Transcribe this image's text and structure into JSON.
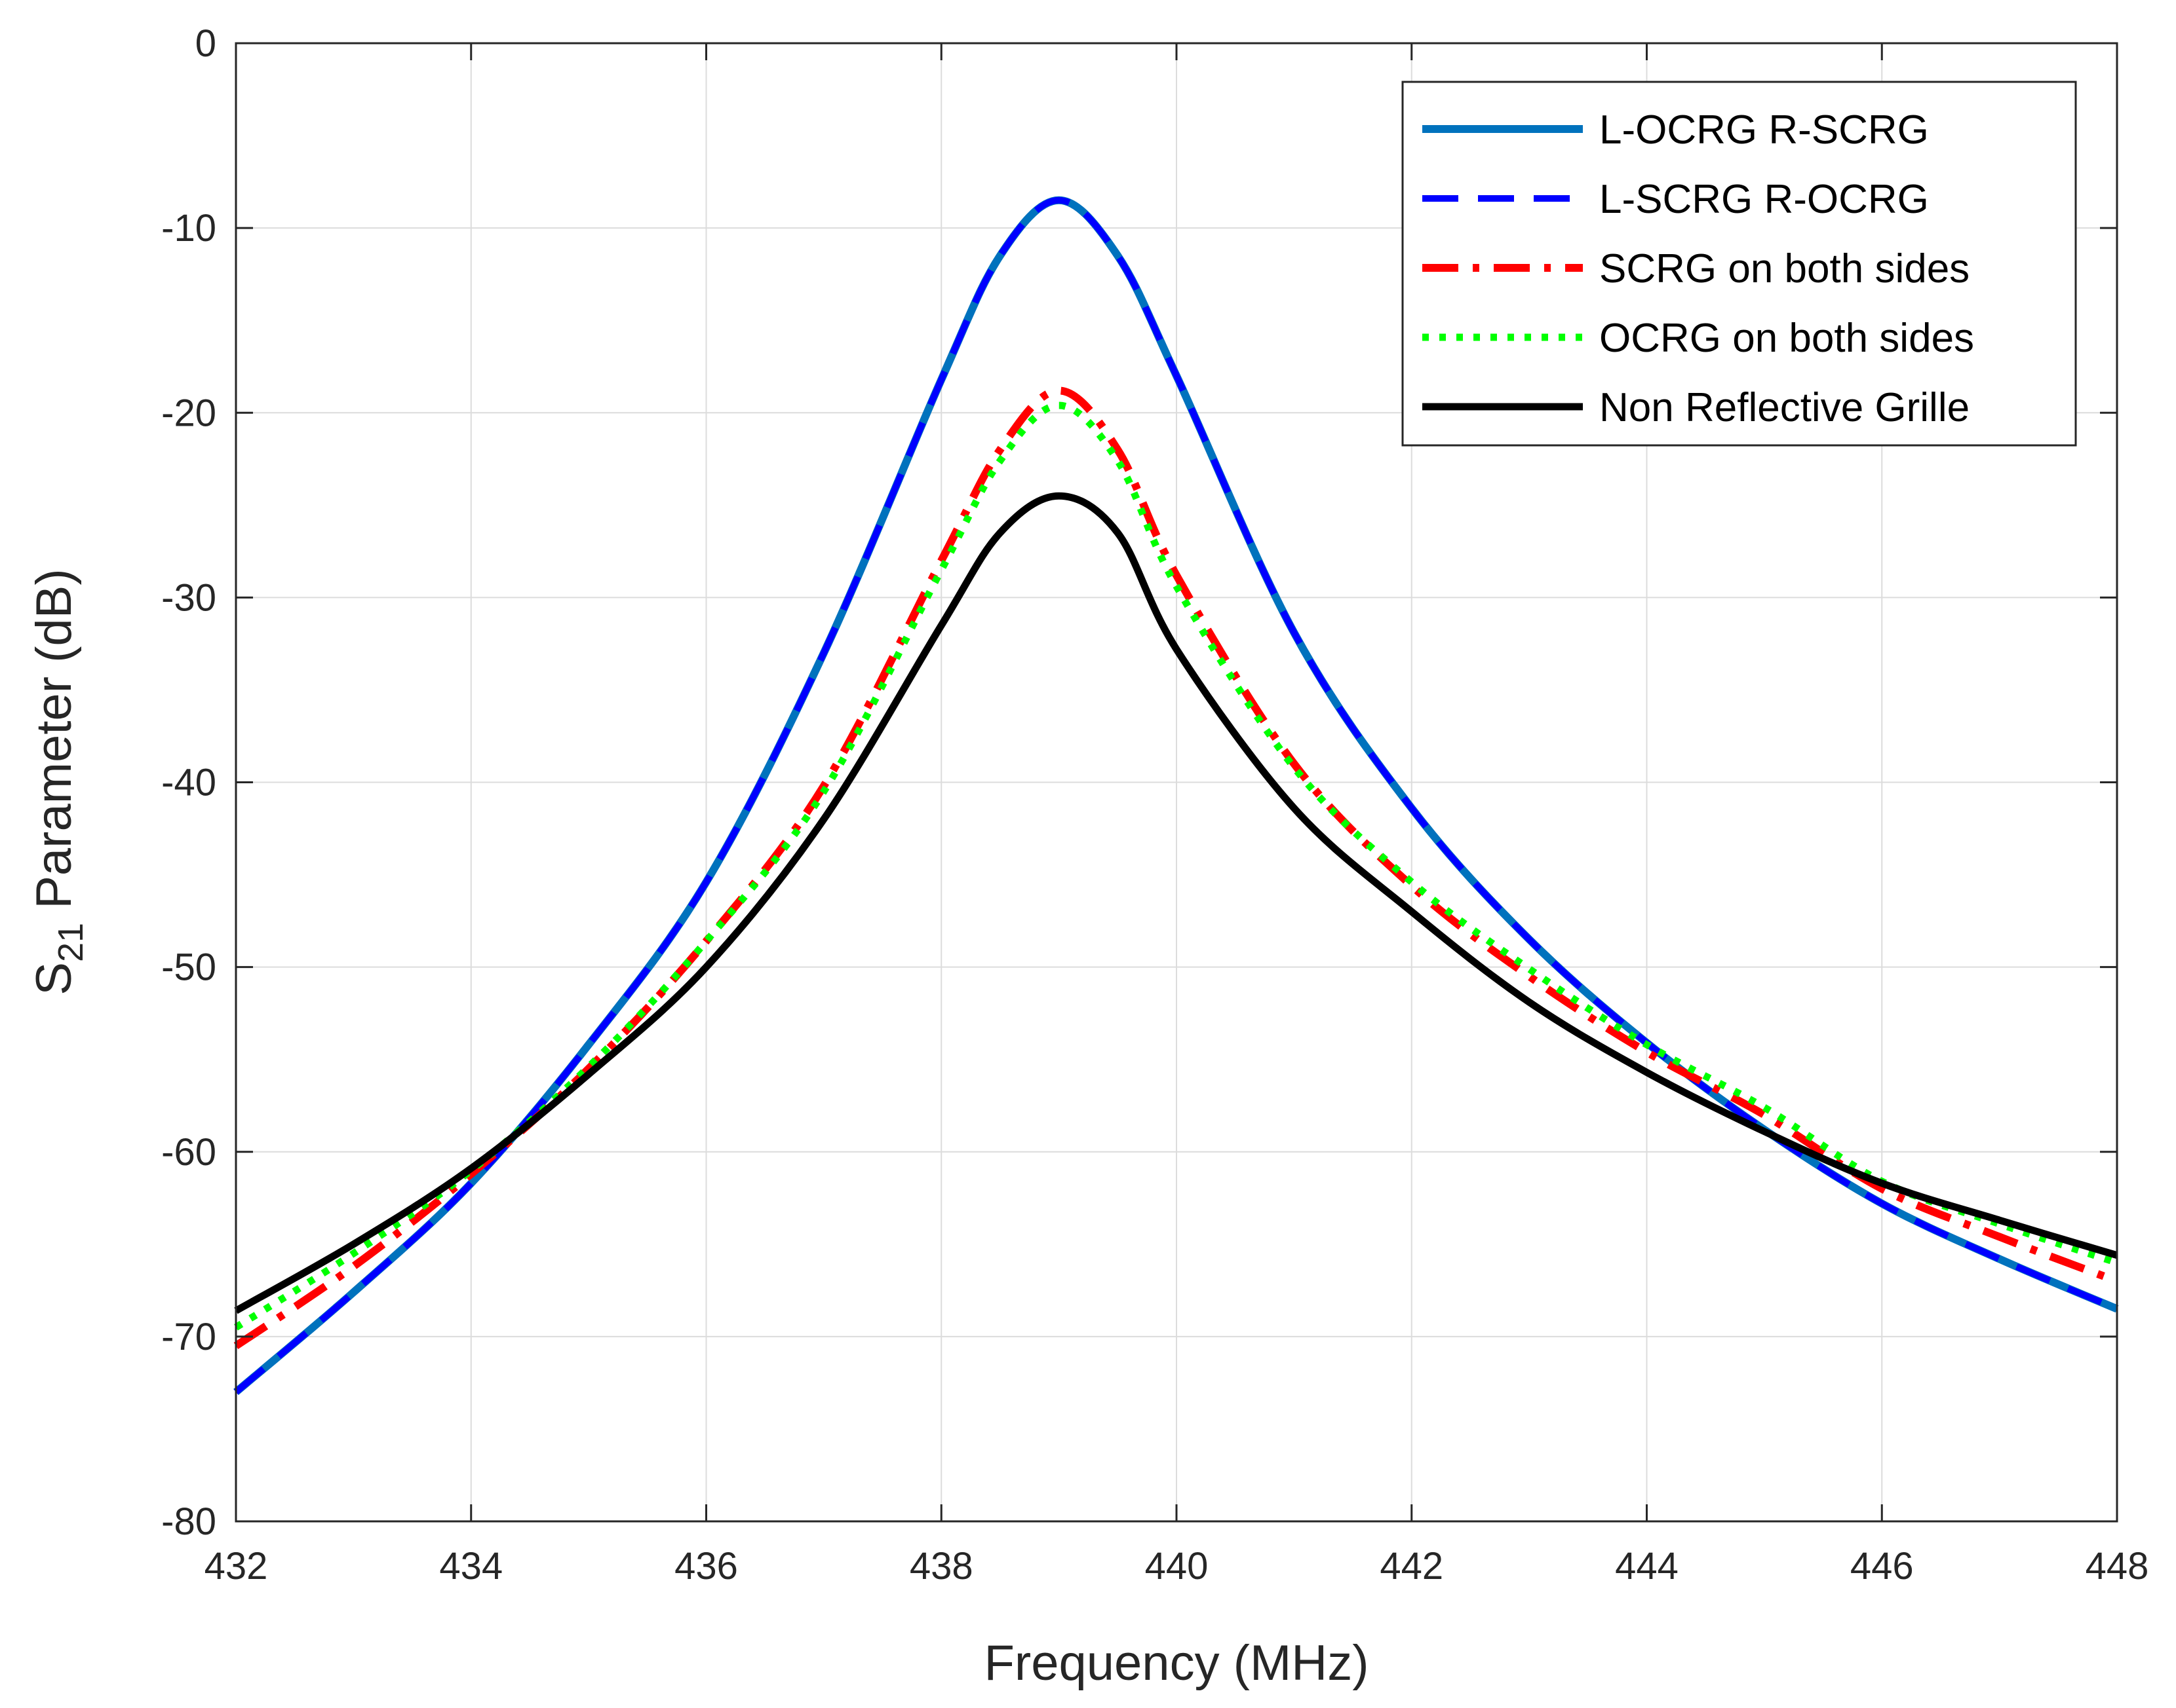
{
  "chart_data": {
    "type": "line",
    "xlabel": "Frequency (MHz)",
    "ylabel_prefix": "S",
    "ylabel_subscript": "21",
    "ylabel_suffix": " Parameter (dB)",
    "xlim": [
      432,
      448
    ],
    "ylim": [
      -80,
      0
    ],
    "xticks": [
      432,
      434,
      436,
      438,
      440,
      442,
      444,
      446,
      448
    ],
    "yticks": [
      0,
      -10,
      -20,
      -30,
      -40,
      -50,
      -60,
      -70,
      -80
    ],
    "grid": true,
    "legend_position": "top-right",
    "x": [
      432,
      433,
      434,
      435,
      436,
      437,
      438,
      438.5,
      439,
      439.5,
      440,
      441,
      442,
      443,
      444,
      445,
      446,
      447,
      448
    ],
    "series": [
      {
        "name": "L-OCRG R-SCRG",
        "color": "#0072BD",
        "style": "solid",
        "values": [
          -73.0,
          -67.6,
          -61.7,
          -54.2,
          -45.4,
          -33.0,
          -18.2,
          -11.5,
          -8.5,
          -11.5,
          -18.0,
          -31.9,
          -41.4,
          -48.5,
          -54.1,
          -58.8,
          -62.8,
          -65.8,
          -68.5
        ]
      },
      {
        "name": "L-SCRG R-OCRG",
        "color": "#0000FF",
        "style": "dashed",
        "values": [
          -73.0,
          -67.6,
          -61.7,
          -54.2,
          -45.4,
          -33.0,
          -18.2,
          -11.5,
          -8.5,
          -11.5,
          -18.0,
          -31.9,
          -41.4,
          -48.5,
          -54.1,
          -58.8,
          -62.8,
          -65.8,
          -68.5
        ]
      },
      {
        "name": "SCRG on both sides",
        "color": "#FF0000",
        "style": "dashdot",
        "values": [
          -70.5,
          -66.2,
          -61.2,
          -55.5,
          -48.6,
          -40.2,
          -28.0,
          -22.0,
          -18.8,
          -22.0,
          -28.8,
          -39.0,
          -45.6,
          -50.5,
          -54.6,
          -58.0,
          -62.0,
          -64.6,
          -67.0
        ]
      },
      {
        "name": "OCRG on both sides",
        "color": "#00FF00",
        "style": "dotted",
        "values": [
          -69.5,
          -65.5,
          -61.0,
          -55.4,
          -48.6,
          -40.5,
          -28.5,
          -22.6,
          -19.6,
          -22.6,
          -29.4,
          -39.2,
          -45.4,
          -50.1,
          -54.2,
          -57.6,
          -61.6,
          -63.9,
          -66.0
        ]
      },
      {
        "name": "Non Reflective Grille",
        "color": "#000000",
        "style": "solid",
        "values": [
          -68.6,
          -65.0,
          -60.9,
          -55.8,
          -50.0,
          -42.0,
          -31.5,
          -26.5,
          -24.5,
          -26.5,
          -32.8,
          -41.4,
          -47.0,
          -51.9,
          -55.7,
          -58.9,
          -61.7,
          -63.7,
          -65.6
        ]
      }
    ]
  }
}
